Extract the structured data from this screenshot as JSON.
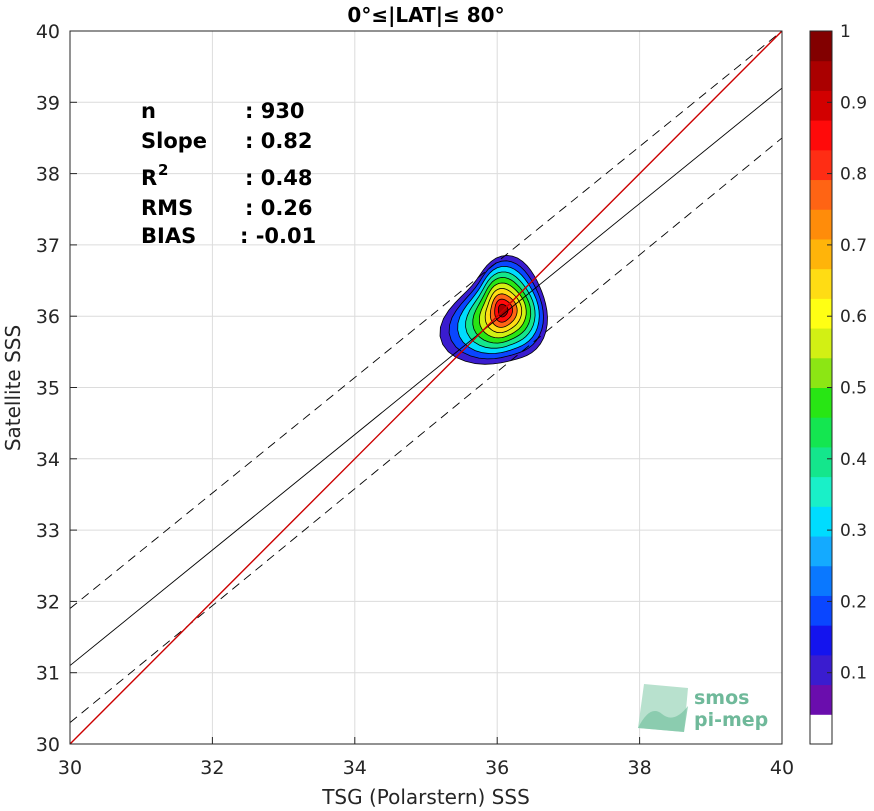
{
  "chart_data": {
    "type": "scatter",
    "title": "0°≤|LAT|≤ 80°",
    "xlabel": "TSG (Polarstern) SSS",
    "ylabel": "Satellite SSS",
    "xlim": [
      30,
      40
    ],
    "ylim": [
      30,
      40
    ],
    "xticks": [
      "30",
      "32",
      "34",
      "36",
      "38",
      "40"
    ],
    "yticks": [
      "30",
      "31",
      "32",
      "33",
      "34",
      "35",
      "36",
      "37",
      "38",
      "39",
      "40"
    ],
    "grid": true,
    "stats": [
      {
        "label": "n",
        "value": ": 930"
      },
      {
        "label": "Slope",
        "value": ": 0.82"
      },
      {
        "label": "R",
        "sup": "2",
        "value": ": 0.48"
      },
      {
        "label": "RMS",
        "value": ": 0.26"
      },
      {
        "label": "BIAS",
        "value": ": -0.01"
      }
    ],
    "lines": {
      "one_to_one": {
        "color": "#cc0000",
        "points": [
          [
            30,
            30
          ],
          [
            40,
            40
          ]
        ]
      },
      "regression": {
        "color": "#000000",
        "points": [
          [
            30,
            31.1
          ],
          [
            40,
            39.2
          ]
        ]
      },
      "upper_dashed": {
        "color": "#000000",
        "points": [
          [
            30,
            31.9
          ],
          [
            40,
            40
          ]
        ]
      },
      "lower_dashed": {
        "color": "#000000",
        "points": [
          [
            30,
            30.3
          ],
          [
            40,
            38.5
          ]
        ]
      }
    },
    "density_center": [
      36.08,
      36.08
    ],
    "density_levels": [
      0.05,
      0.15,
      0.25,
      0.35,
      0.45,
      0.55,
      0.65,
      0.75,
      0.85,
      0.95
    ],
    "colorbar": {
      "range": [
        0,
        1
      ],
      "ticks": [
        "0.1",
        "0.2",
        "0.3",
        "0.4",
        "0.5",
        "0.6",
        "0.7",
        "0.8",
        "0.9",
        "1"
      ],
      "colors": [
        "#ffffff",
        "#6a0dad",
        "#3a1ccf",
        "#1414ee",
        "#0a46ff",
        "#0a78ff",
        "#14aaff",
        "#00dcff",
        "#19f0c8",
        "#14e68c",
        "#14e650",
        "#28e614",
        "#8ce614",
        "#d2f014",
        "#ffff14",
        "#ffdc14",
        "#ffb40a",
        "#ff8c0a",
        "#ff6414",
        "#ff2d14",
        "#ff0a0a",
        "#d20000",
        "#aa0000",
        "#820000"
      ]
    },
    "logo": {
      "line1": "smos",
      "line2": "pi-mep"
    }
  }
}
